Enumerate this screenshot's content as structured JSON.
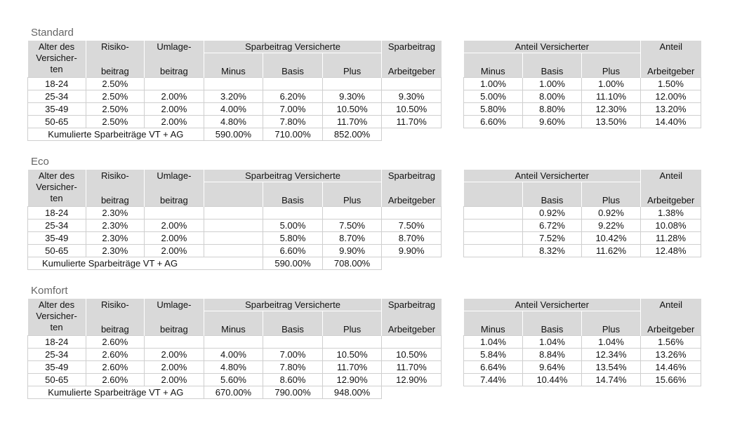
{
  "headers": {
    "alter": "Alter des Versicher-ten",
    "alter_l1": "Alter des",
    "alter_l2": "Versicher-",
    "alter_l3": "ten",
    "risiko_top": "Risiko-",
    "risiko_bottom": "beitrag",
    "umlage_top": "Umlage-",
    "umlage_bottom": "beitrag",
    "spar_vers": "Sparbeitrag Versicherte",
    "spar_top": "Sparbeitrag",
    "spar_bottom": "Arbeitgeber",
    "minus": "Minus",
    "basis": "Basis",
    "plus": "Plus",
    "anteil_vers": "Anteil Versicherter",
    "anteil_top": "Anteil",
    "anteil_bottom": "Arbeitgeber"
  },
  "cumulative_label": "Kumulierte Sparbeiträge VT + AG",
  "sections": [
    {
      "title": "Standard",
      "rows": [
        [
          "18-24",
          "2.50%",
          "",
          "",
          "",
          "",
          ""
        ],
        [
          "25-34",
          "2.50%",
          "2.00%",
          "3.20%",
          "6.20%",
          "9.30%",
          "9.30%"
        ],
        [
          "35-49",
          "2.50%",
          "2.00%",
          "4.00%",
          "7.00%",
          "10.50%",
          "10.50%"
        ],
        [
          "50-65",
          "2.50%",
          "2.00%",
          "4.80%",
          "7.80%",
          "11.70%",
          "11.70%"
        ]
      ],
      "cumulative": [
        "590.00%",
        "710.00%",
        "852.00%"
      ],
      "anteil_rows": [
        [
          "1.00%",
          "1.00%",
          "1.00%",
          "1.50%"
        ],
        [
          "5.00%",
          "8.00%",
          "11.10%",
          "12.00%"
        ],
        [
          "5.80%",
          "8.80%",
          "12.30%",
          "13.20%"
        ],
        [
          "6.60%",
          "9.60%",
          "13.50%",
          "14.40%"
        ]
      ]
    },
    {
      "title": "Eco",
      "rows": [
        [
          "18-24",
          "2.30%",
          "",
          "",
          "",
          "",
          ""
        ],
        [
          "25-34",
          "2.30%",
          "2.00%",
          "",
          "5.00%",
          "7.50%",
          "7.50%"
        ],
        [
          "35-49",
          "2.30%",
          "2.00%",
          "",
          "5.80%",
          "8.70%",
          "8.70%"
        ],
        [
          "50-65",
          "2.30%",
          "2.00%",
          "",
          "6.60%",
          "9.90%",
          "9.90%"
        ]
      ],
      "cumulative": [
        "",
        "590.00%",
        "708.00%"
      ],
      "anteil_rows": [
        [
          "",
          "0.92%",
          "0.92%",
          "1.38%"
        ],
        [
          "",
          "6.72%",
          "9.22%",
          "10.08%"
        ],
        [
          "",
          "7.52%",
          "10.42%",
          "11.28%"
        ],
        [
          "",
          "8.32%",
          "11.62%",
          "12.48%"
        ]
      ]
    },
    {
      "title": "Komfort",
      "rows": [
        [
          "18-24",
          "2.60%",
          "",
          "",
          "",
          "",
          ""
        ],
        [
          "25-34",
          "2.60%",
          "2.00%",
          "4.00%",
          "7.00%",
          "10.50%",
          "10.50%"
        ],
        [
          "35-49",
          "2.60%",
          "2.00%",
          "4.80%",
          "7.80%",
          "11.70%",
          "11.70%"
        ],
        [
          "50-65",
          "2.60%",
          "2.00%",
          "5.60%",
          "8.60%",
          "12.90%",
          "12.90%"
        ]
      ],
      "cumulative": [
        "670.00%",
        "790.00%",
        "948.00%"
      ],
      "anteil_rows": [
        [
          "1.04%",
          "1.04%",
          "1.04%",
          "1.56%"
        ],
        [
          "5.84%",
          "8.84%",
          "12.34%",
          "13.26%"
        ],
        [
          "6.64%",
          "9.64%",
          "13.54%",
          "14.46%"
        ],
        [
          "7.44%",
          "10.44%",
          "14.74%",
          "15.66%"
        ]
      ]
    }
  ]
}
